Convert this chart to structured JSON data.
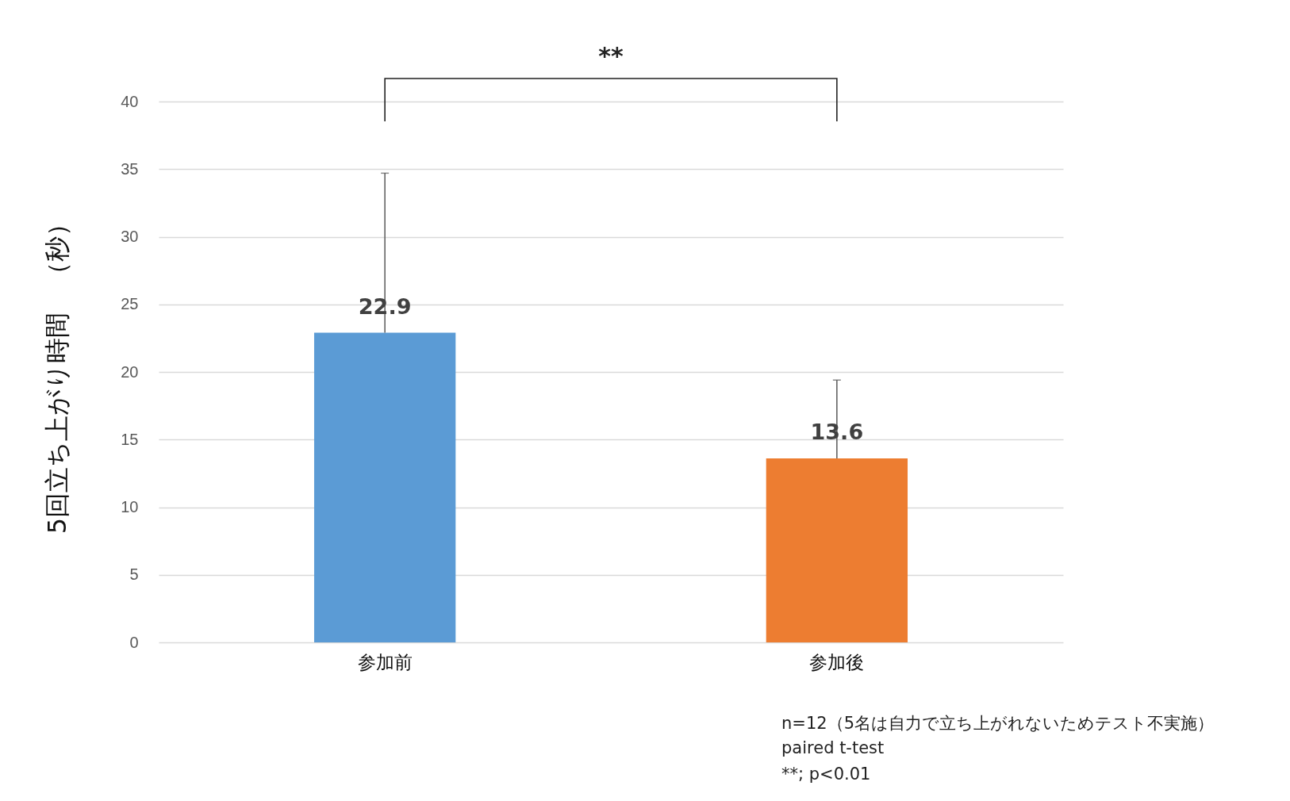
{
  "chart_data": {
    "type": "bar",
    "ylabel": "5回立ち上がり時間　（秒）",
    "categories": [
      "参加前",
      "参加後"
    ],
    "values": [
      22.9,
      13.6
    ],
    "colors": [
      "#5b9bd5",
      "#ed7d31"
    ],
    "errors": [
      [
        22.9,
        34.7
      ],
      [
        13.6,
        19.4
      ]
    ],
    "data_labels": true,
    "ylim": [
      0,
      40
    ],
    "yticks": [
      0,
      5,
      10,
      15,
      20,
      25,
      30,
      35,
      40
    ],
    "grid": "y",
    "annotations": [
      "**",
      "n=12（5名は自力で立ち上がれないためテスト不実施）",
      "paired t-test",
      "**; p<0.01"
    ]
  }
}
